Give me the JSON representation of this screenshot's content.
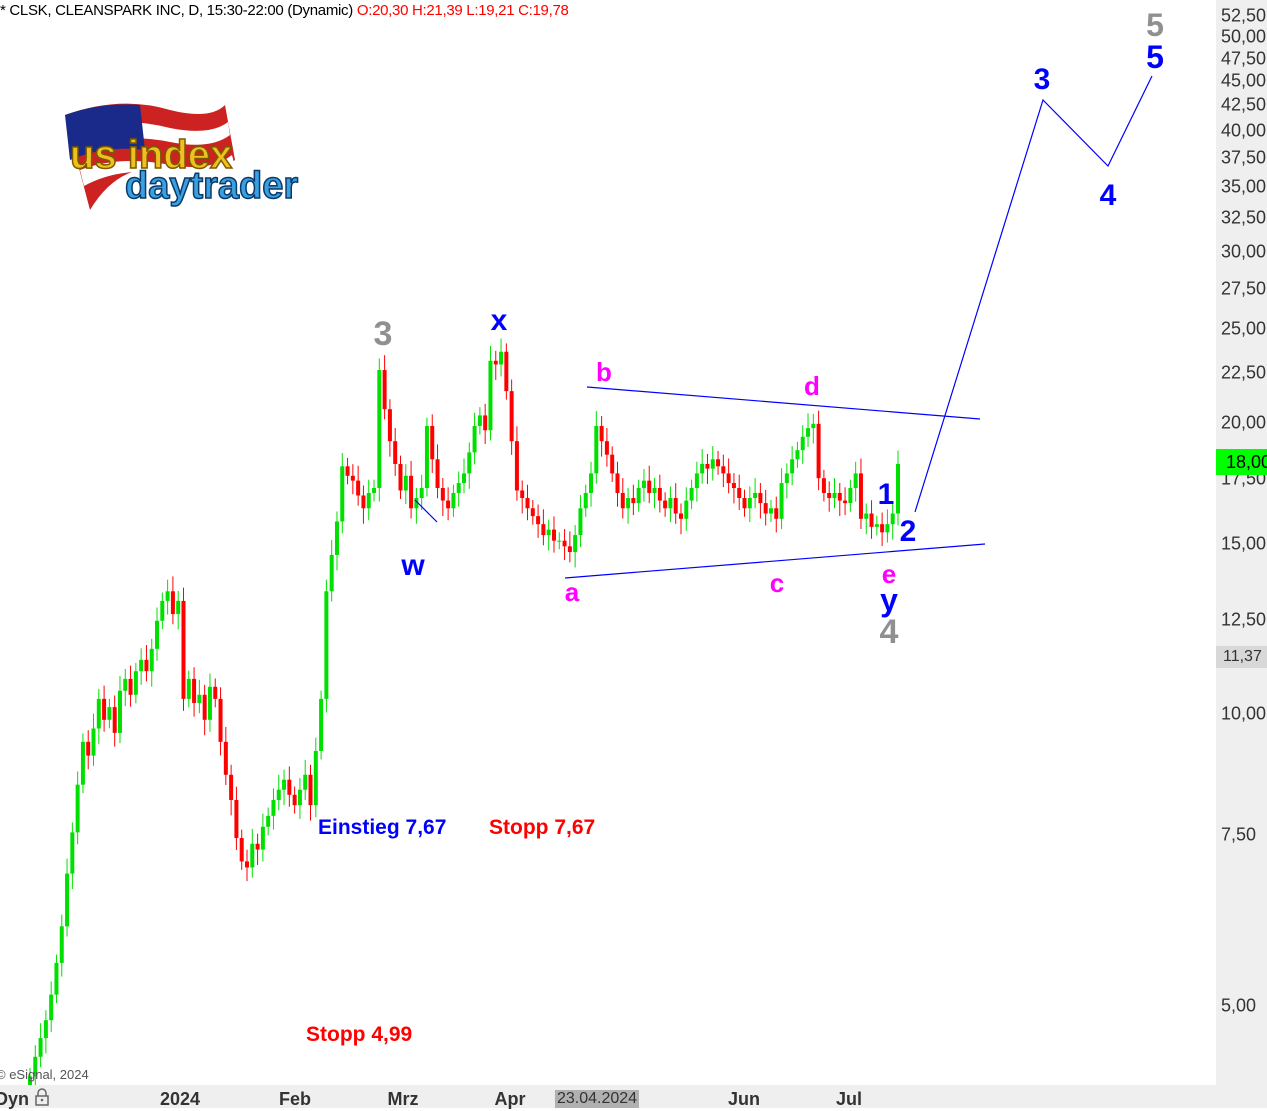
{
  "header": {
    "title": "* CLSK, CLEANSPARK INC, D, 15:30-22:00 (Dynamic)",
    "ohlc": "O:20,30 H:21,39 L:19,21 C:19,78"
  },
  "logo_text": "us index daytrader",
  "copyright": "© eSignal, 2024",
  "colors": {
    "up": "#00e000",
    "down": "#ff0000",
    "wave_blue": "#0000ff",
    "wave_gray": "#909090",
    "wave_magenta": "#ff00ff",
    "price_label": "#00ff00"
  },
  "price_labels": {
    "current": "18,00",
    "marker": "11,37"
  },
  "wave_labels": {
    "gray_3": "3",
    "x": "x",
    "w": "w",
    "a": "a",
    "b": "b",
    "c": "c",
    "d": "d",
    "e": "e",
    "y": "y",
    "gray_4": "4",
    "blue_1": "1",
    "blue_2": "2",
    "blue_3": "3",
    "blue_4": "4",
    "blue_5": "5",
    "gray_5": "5"
  },
  "notes": {
    "entry": "Einstieg 7,67",
    "stop1": "Stopp 7,67",
    "stop2": "Stopp 4,99"
  },
  "xaxis": {
    "dyn": "Dyn",
    "ticks": [
      "2024",
      "Feb",
      "Mrz",
      "Apr",
      "23.04.2024",
      "Jun",
      "Jul"
    ]
  },
  "chart_data": {
    "type": "candlestick",
    "yscale": "log",
    "ylim": [
      4.0,
      52.5
    ],
    "yticks": [
      "52,50",
      "50,00",
      "47,50",
      "45,00",
      "42,50",
      "40,00",
      "37,50",
      "35,00",
      "32,50",
      "30,00",
      "27,50",
      "25,00",
      "22,50",
      "20,00",
      "17,50",
      "15,00",
      "12,50",
      "10,00",
      "7,50",
      "5,00"
    ],
    "ytick_values": [
      52.5,
      50,
      47.5,
      45,
      42.5,
      40,
      37.5,
      35,
      32.5,
      30,
      27.5,
      25,
      22.5,
      20,
      17.5,
      15,
      12.5,
      10,
      7.5,
      5
    ],
    "first_open": 4.0,
    "closes": [
      4.2,
      4.4,
      4.6,
      4.8,
      5.1,
      5.5,
      6.0,
      6.8,
      7.5,
      8.4,
      9.3,
      9.0,
      9.6,
      10.3,
      9.8,
      10.1,
      9.5,
      10.5,
      10.8,
      10.4,
      11.0,
      11.3,
      11.0,
      11.6,
      12.4,
      13.0,
      13.3,
      12.6,
      13.0,
      10.3,
      10.8,
      10.2,
      10.4,
      9.8,
      10.6,
      10.3,
      9.3,
      8.6,
      8.1,
      7.4,
      7.0,
      6.9,
      7.3,
      7.2,
      7.6,
      7.8,
      8.1,
      8.3,
      8.5,
      8.2,
      8.0,
      8.3,
      8.6,
      8.0,
      9.1,
      10.3,
      13.3,
      14.5,
      15.7,
      17.9,
      17.5,
      17.3,
      16.7,
      16.2,
      16.8,
      17.0,
      22.5,
      20.5,
      19.0,
      18.0,
      16.9,
      17.5,
      16.2,
      16.6,
      17.0,
      19.7,
      18.2,
      17.0,
      16.5,
      16.2,
      16.8,
      17.2,
      17.6,
      18.5,
      19.7,
      20.2,
      19.5,
      23.0,
      22.8,
      23.5,
      21.4,
      19.0,
      16.9,
      16.6,
      16.2,
      15.9,
      15.6,
      15.2,
      15.4,
      15.0,
      15.0,
      14.8,
      14.6,
      15.2,
      16.2,
      16.8,
      17.6,
      19.7,
      19.0,
      18.4,
      17.6,
      16.8,
      16.2,
      16.6,
      16.4,
      17.0,
      17.3,
      16.8,
      17.0,
      16.5,
      16.2,
      16.6,
      16.0,
      15.8,
      16.5,
      17.0,
      17.6,
      18.0,
      17.8,
      18.2,
      17.9,
      17.6,
      17.2,
      17.0,
      16.6,
      16.2,
      16.6,
      16.8,
      16.4,
      16.0,
      16.2,
      15.8,
      17.2,
      17.6,
      18.2,
      18.6,
      19.2,
      19.6,
      19.8,
      17.4,
      16.8,
      16.6,
      16.8,
      16.5,
      16.4,
      17.0,
      17.6,
      15.8,
      16.0,
      15.5,
      15.6,
      15.3,
      15.6,
      16.0,
      18.0
    ]
  }
}
